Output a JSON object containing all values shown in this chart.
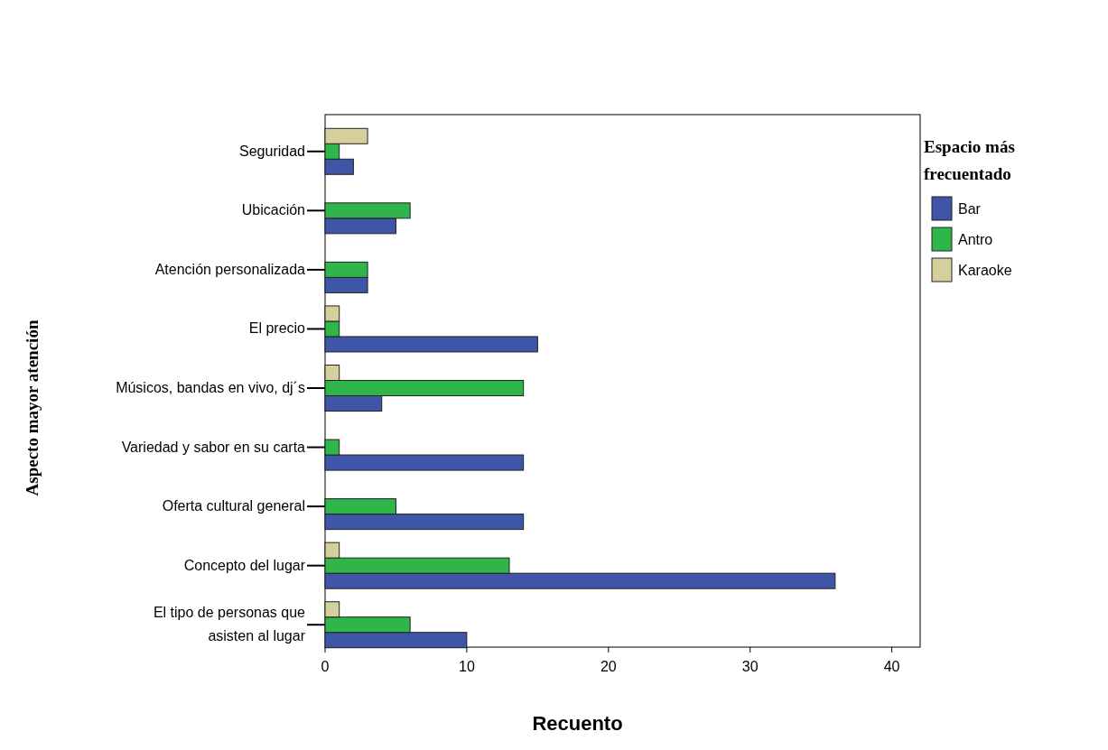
{
  "chart_data": {
    "type": "bar",
    "orientation": "horizontal",
    "xlabel": "Recuento",
    "ylabel": "Aspecto mayor atención",
    "legend_title": "Espacio más frecuentado",
    "legend": "right",
    "categories": [
      "Seguridad",
      "Ubicación",
      "Atención personalizada",
      "El precio",
      "Músicos, bandas en vivo, dj´s",
      "Variedad y sabor en su carta",
      "Oferta cultural general",
      "Concepto del lugar",
      "El tipo de personas que asisten al lugar"
    ],
    "series": [
      {
        "name": "Bar",
        "color": "#3f55a8",
        "values": [
          2,
          5,
          3,
          15,
          4,
          14,
          14,
          36,
          10
        ]
      },
      {
        "name": "Antro",
        "color": "#2fb54a",
        "values": [
          1,
          6,
          3,
          1,
          14,
          1,
          5,
          13,
          6
        ]
      },
      {
        "name": "Karaoke",
        "color": "#d4cf9b",
        "values": [
          3,
          null,
          null,
          1,
          1,
          null,
          null,
          1,
          1
        ]
      }
    ],
    "xlim": [
      0,
      42
    ],
    "xticks": [
      0,
      10,
      20,
      30,
      40
    ],
    "grid": false
  }
}
